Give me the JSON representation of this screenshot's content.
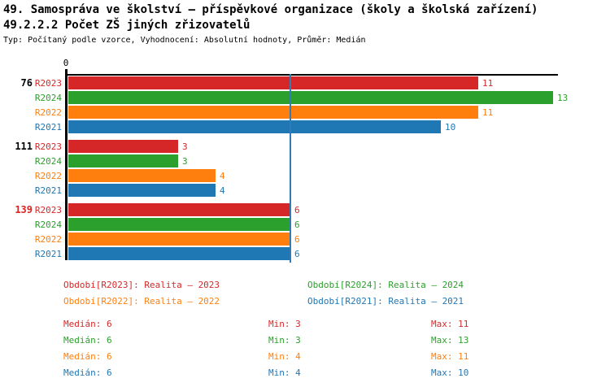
{
  "header": {
    "title_line1": "49. Samospráva ve školství – příspěvkové organizace (školy a školská zařízení)",
    "title_line2": "49.2.2.2 Počet ZŠ jiných zřizovatelů",
    "meta": "Typ: Počítaný podle vzorce, Vyhodnocení: Absolutní hodnoty, Průměr: Medián"
  },
  "colors": {
    "R2023": "#d62728",
    "R2024": "#2ca02c",
    "R2022": "#ff7f0e",
    "R2021": "#1f77b4",
    "axis": "#000000",
    "median_line": "#2e7cb8",
    "group_label_normal": "#000000",
    "group_label_highlight": "#d62728"
  },
  "chart_data": {
    "type": "bar",
    "orientation": "horizontal",
    "title": "49.2.2.2 Počet ZŠ jiných zřizovatelů",
    "x_axis": {
      "min": 0,
      "max": 13,
      "tick_labels": [
        "0"
      ],
      "grid": false
    },
    "median_reference_line": 6,
    "series_order": [
      "R2023",
      "R2024",
      "R2022",
      "R2021"
    ],
    "groups": [
      {
        "label": "76",
        "highlighted": false,
        "values": {
          "R2023": 11,
          "R2024": 13,
          "R2022": 11,
          "R2021": 10
        }
      },
      {
        "label": "111",
        "highlighted": false,
        "values": {
          "R2023": 3,
          "R2024": 3,
          "R2022": 4,
          "R2021": 4
        }
      },
      {
        "label": "139",
        "highlighted": true,
        "values": {
          "R2023": 6,
          "R2024": 6,
          "R2022": 6,
          "R2021": 6
        }
      }
    ],
    "series_stats": [
      {
        "series": "R2023",
        "median": 6,
        "min": 3,
        "max": 11
      },
      {
        "series": "R2024",
        "median": 6,
        "min": 3,
        "max": 13
      },
      {
        "series": "R2022",
        "median": 6,
        "min": 4,
        "max": 11
      },
      {
        "series": "R2021",
        "median": 6,
        "min": 4,
        "max": 10
      }
    ]
  },
  "legend": [
    {
      "series": "R2023",
      "label": "Období[R2023]: Realita – 2023"
    },
    {
      "series": "R2024",
      "label": "Období[R2024]: Realita – 2024"
    },
    {
      "series": "R2022",
      "label": "Období[R2022]: Realita – 2022"
    },
    {
      "series": "R2021",
      "label": "Období[R2021]: Realita – 2021"
    }
  ],
  "stats_labels": {
    "median": "Medián",
    "min": "Min",
    "max": "Max"
  }
}
